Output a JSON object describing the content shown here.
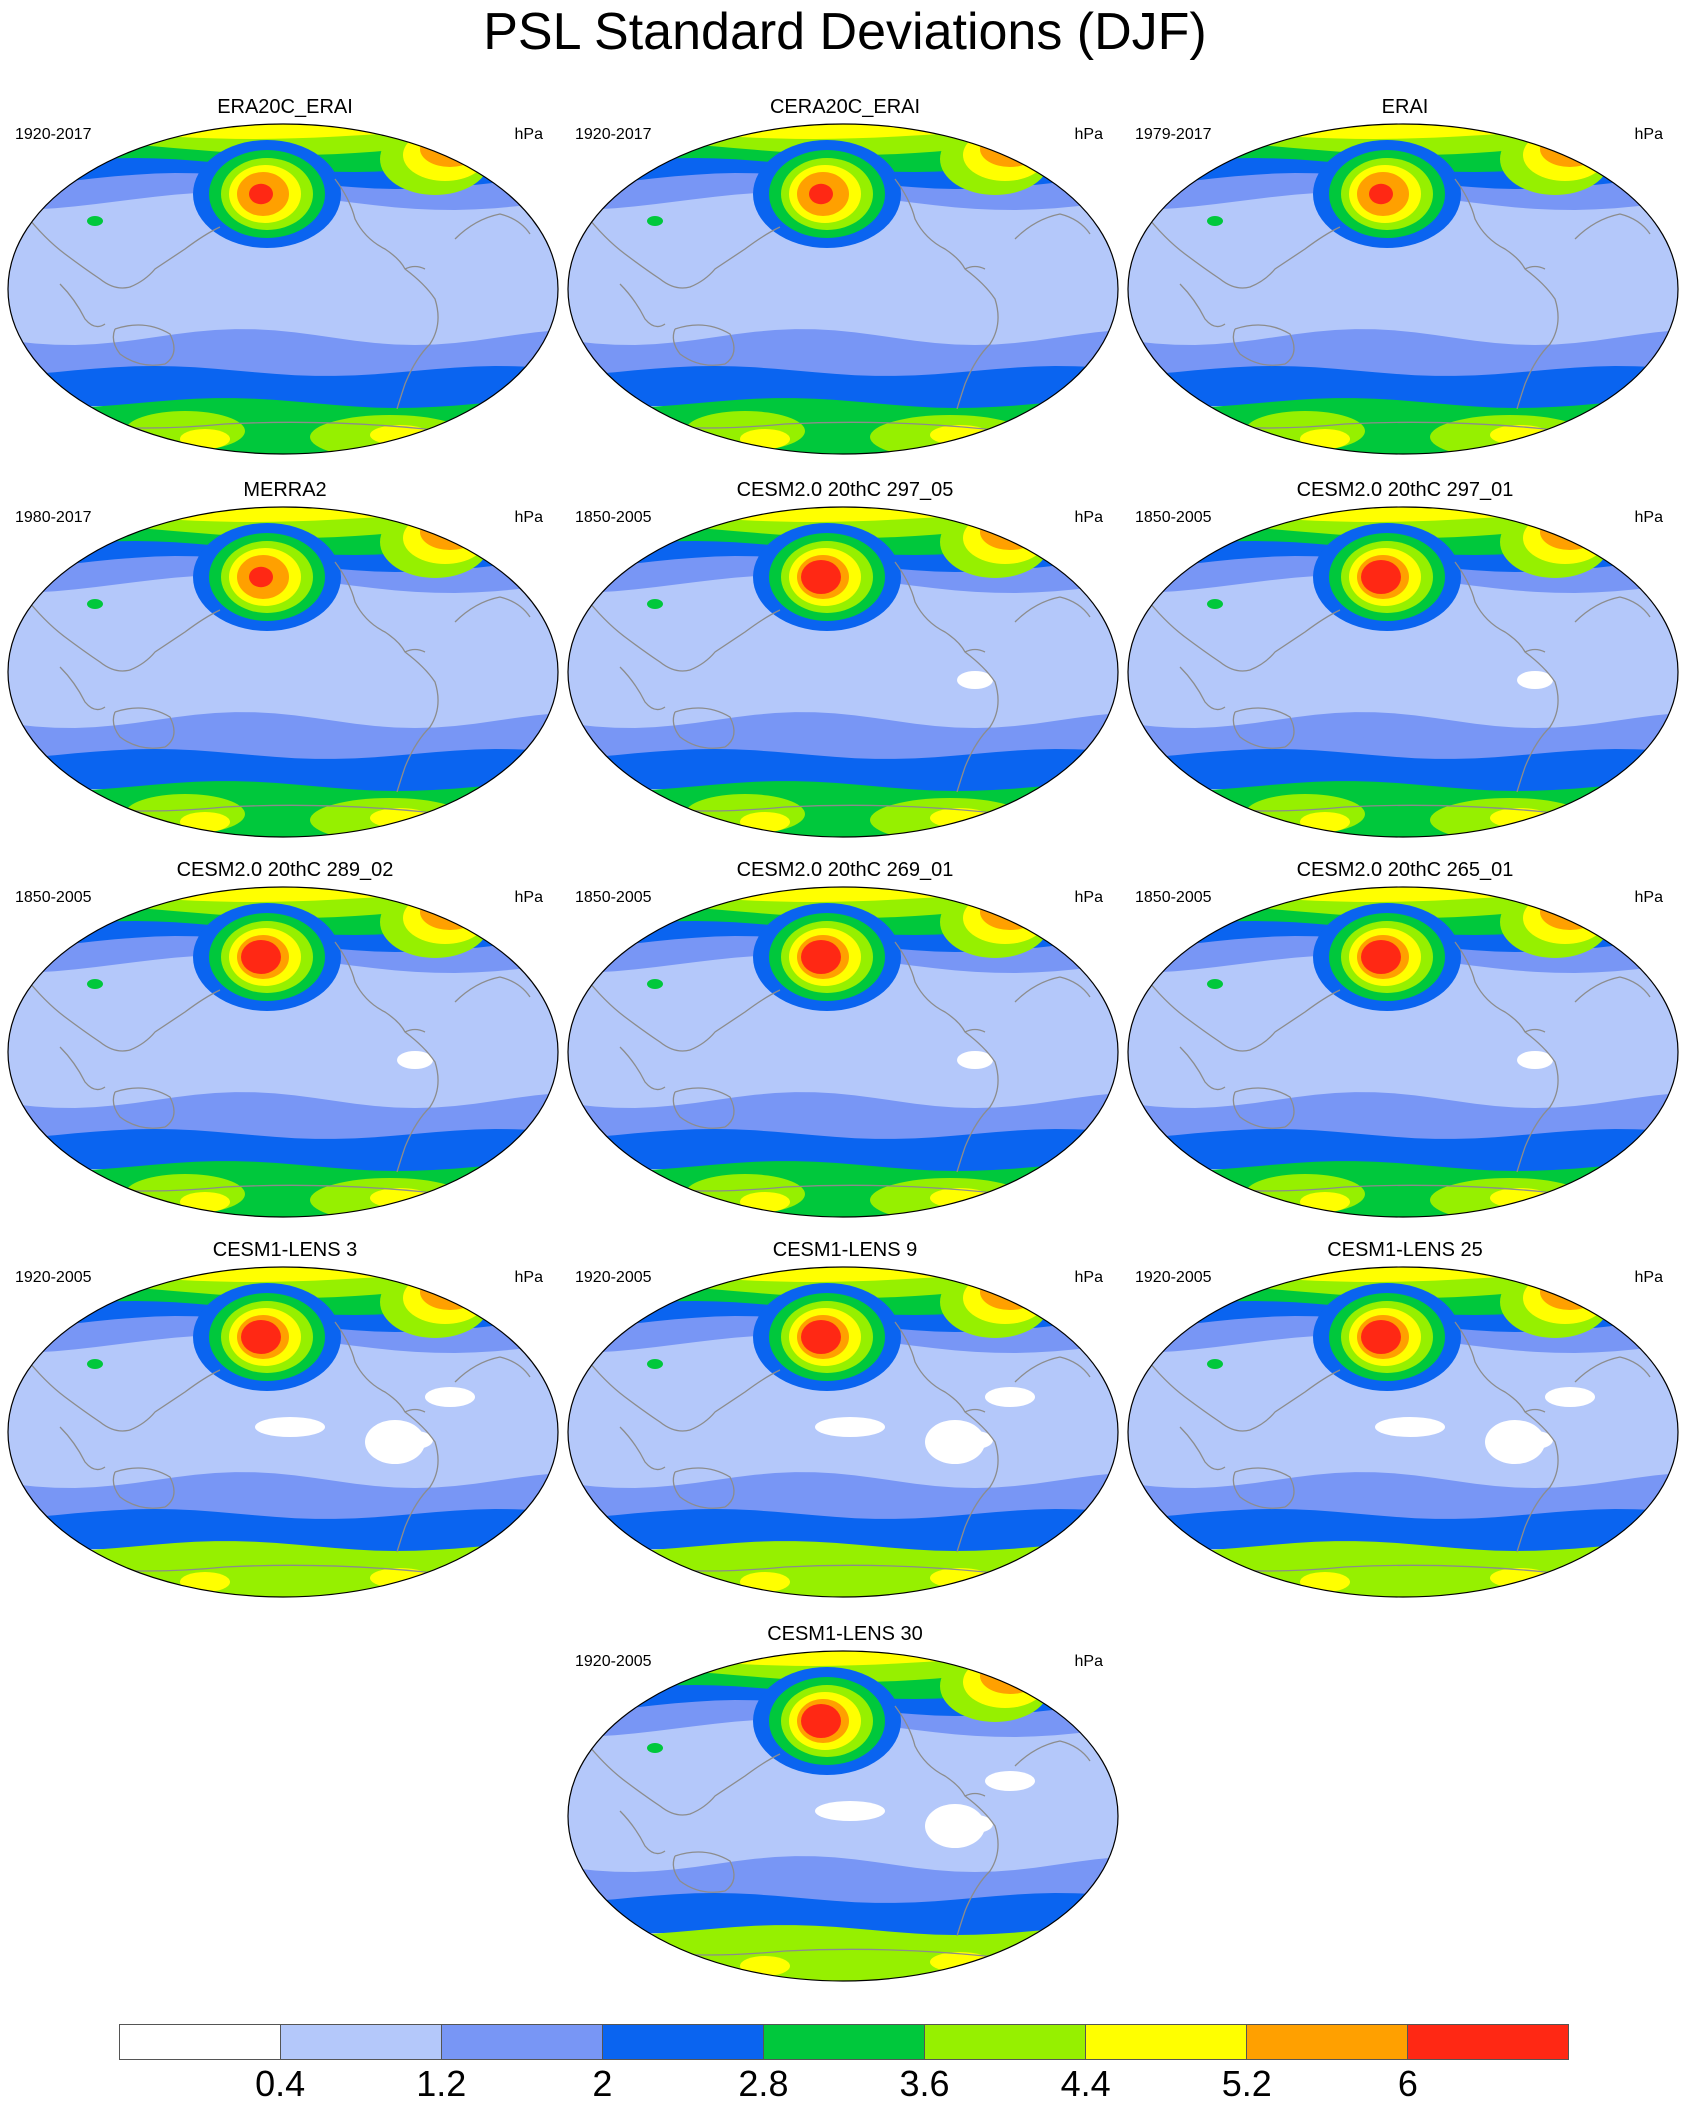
{
  "title": "PSL Standard Deviations (DJF)",
  "units": "hPa",
  "colors": {
    "levels": [
      "#ffffff",
      "#b4c8fa",
      "#7896f5",
      "#0a64f0",
      "#00c83c",
      "#96f000",
      "#ffff00",
      "#ffa000",
      "#ff2814"
    ],
    "coast": "#8c8c8c"
  },
  "colorbar": {
    "labels": [
      "0.4",
      "1.2",
      "2",
      "2.8",
      "3.6",
      "4.4",
      "5.2",
      "6"
    ]
  },
  "panels": [
    {
      "title": "ERA20C_ERAI",
      "period": "1920-2017",
      "units": "hPa",
      "variant": 0
    },
    {
      "title": "CERA20C_ERAI",
      "period": "1920-2017",
      "units": "hPa",
      "variant": 0
    },
    {
      "title": "ERAI",
      "period": "1979-2017",
      "units": "hPa",
      "variant": 1
    },
    {
      "title": "MERRA2",
      "period": "1980-2017",
      "units": "hPa",
      "variant": 1
    },
    {
      "title": "CESM2.0 20thC 297_05",
      "period": "1850-2005",
      "units": "hPa",
      "variant": 2
    },
    {
      "title": "CESM2.0 20thC 297_01",
      "period": "1850-2005",
      "units": "hPa",
      "variant": 2
    },
    {
      "title": "CESM2.0 20thC 289_02",
      "period": "1850-2005",
      "units": "hPa",
      "variant": 2
    },
    {
      "title": "CESM2.0 20thC 269_01",
      "period": "1850-2005",
      "units": "hPa",
      "variant": 2
    },
    {
      "title": "CESM2.0 20thC 265_01",
      "period": "1850-2005",
      "units": "hPa",
      "variant": 2
    },
    {
      "title": "CESM1-LENS 3",
      "period": "1920-2005",
      "units": "hPa",
      "variant": 3
    },
    {
      "title": "CESM1-LENS 9",
      "period": "1920-2005",
      "units": "hPa",
      "variant": 3
    },
    {
      "title": "CESM1-LENS 25",
      "period": "1920-2005",
      "units": "hPa",
      "variant": 3
    },
    {
      "title": "CESM1-LENS 30",
      "period": "1920-2005",
      "units": "hPa",
      "variant": 3
    }
  ]
}
